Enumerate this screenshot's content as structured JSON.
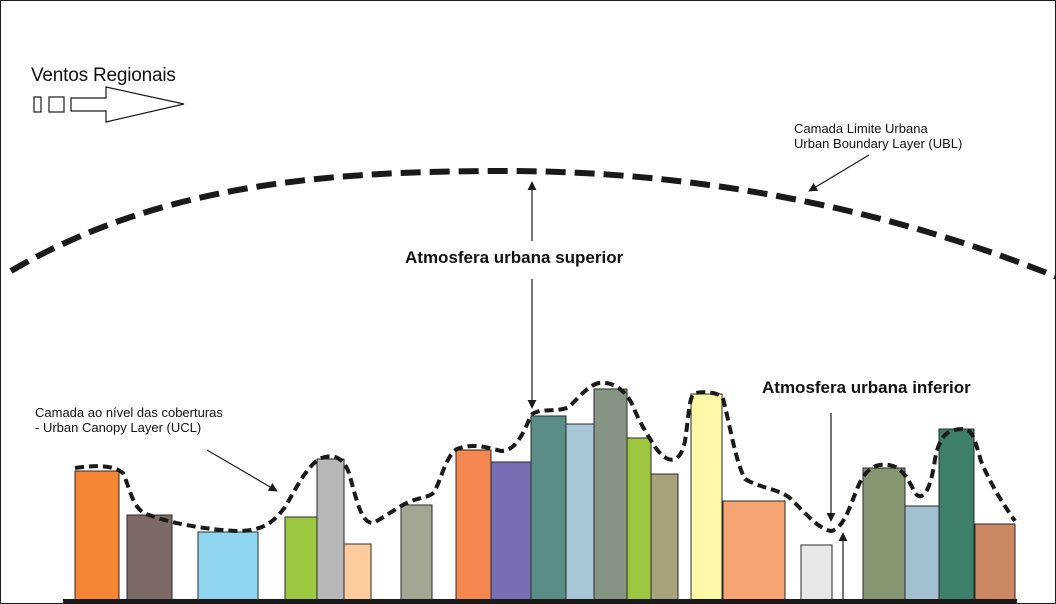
{
  "labels": {
    "regional_winds": "Ventos Regionais",
    "ubl_line1": "Camada Limite Urbana",
    "ubl_line2": "Urban Boundary Layer (UBL)",
    "upper_atmosphere": "Atmosfera urbana superior",
    "lower_atmosphere": "Atmosfera urbana inferior",
    "ucl_line1": "Camada ao nível das coberturas",
    "ucl_line2": "- Urban Canopy Layer (UCL)"
  },
  "colors": {
    "line": "#1a1a1a",
    "ground": "#1a1a1a",
    "building_outline": "#2a2a2a",
    "buildings": [
      "#f58634",
      "#7b6a66",
      "#8fd6f1",
      "#9bc83f",
      "#b5b7b9",
      "#fdcc9c",
      "#a5a594",
      "#f4874f",
      "#776fb4",
      "#5b8d87",
      "#a8c8d8",
      "#869484",
      "#9dc63e",
      "#a8a27c",
      "#fdf8a6",
      "#f6a472",
      "#e6e7e8",
      "#869671",
      "#a3c0d0",
      "#3d7f68",
      "#cb8863"
    ]
  },
  "icons": {
    "wind_arrow": "wind-arrow-icon"
  }
}
